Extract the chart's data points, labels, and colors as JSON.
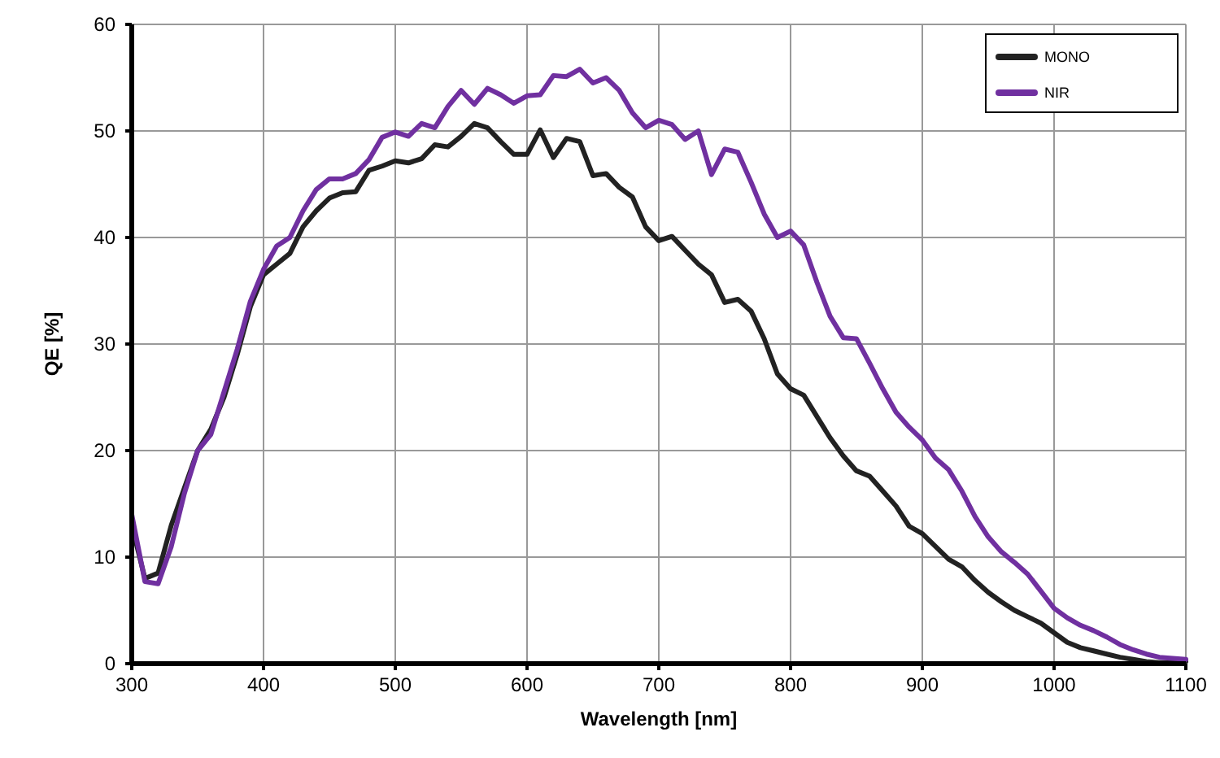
{
  "chart_data": {
    "type": "line",
    "xlabel": "Wavelength [nm]",
    "ylabel": "QE [%]",
    "x": [
      300,
      310,
      320,
      330,
      340,
      350,
      360,
      370,
      380,
      390,
      400,
      410,
      420,
      430,
      440,
      450,
      460,
      470,
      480,
      490,
      500,
      510,
      520,
      530,
      540,
      550,
      560,
      570,
      580,
      590,
      600,
      610,
      620,
      630,
      640,
      650,
      660,
      670,
      680,
      690,
      700,
      710,
      720,
      730,
      740,
      750,
      760,
      770,
      780,
      790,
      800,
      810,
      820,
      830,
      840,
      850,
      860,
      870,
      880,
      890,
      900,
      910,
      920,
      930,
      940,
      950,
      960,
      970,
      980,
      990,
      1000,
      1010,
      1020,
      1030,
      1040,
      1050,
      1060,
      1070,
      1080,
      1090,
      1100
    ],
    "series": [
      {
        "name": "MONO",
        "color": "#222222",
        "values": [
          13,
          8,
          8.5,
          13,
          16.5,
          20,
          22,
          25,
          29,
          33.5,
          36.5,
          37.5,
          38.5,
          41,
          42.5,
          43.7,
          44.2,
          44.3,
          46.3,
          46.7,
          47.2,
          47,
          47.4,
          48.7,
          48.5,
          49.5,
          50.7,
          50.3,
          49,
          47.8,
          47.8,
          50.1,
          47.5,
          49.3,
          49,
          45.8,
          46,
          44.7,
          43.8,
          41,
          39.7,
          40.1,
          38.8,
          37.5,
          36.5,
          33.9,
          34.2,
          33.1,
          30.5,
          27.2,
          25.8,
          25.2,
          23.2,
          21.2,
          19.5,
          18.1,
          17.6,
          16.2,
          14.8,
          12.9,
          12.2,
          11,
          9.8,
          9.1,
          7.8,
          6.7,
          5.8,
          5,
          4.4,
          3.8,
          2.9,
          2,
          1.5,
          1.2,
          0.9,
          0.6,
          0.4,
          0.2,
          0.1,
          0.1,
          0.2
        ]
      },
      {
        "name": "NIR",
        "color": "#7030a0",
        "values": [
          14,
          7.7,
          7.5,
          11,
          16,
          20,
          21.5,
          25.5,
          29.5,
          34,
          37,
          39.2,
          40,
          42.5,
          44.5,
          45.5,
          45.5,
          46,
          47.3,
          49.4,
          49.9,
          49.5,
          50.7,
          50.3,
          52.3,
          53.8,
          52.5,
          54,
          53.4,
          52.6,
          53.3,
          53.4,
          55.2,
          55.1,
          55.8,
          54.5,
          55,
          53.8,
          51.7,
          50.3,
          51,
          50.6,
          49.2,
          50,
          45.9,
          48.3,
          48,
          45.2,
          42.2,
          40,
          40.6,
          39.3,
          35.8,
          32.6,
          30.6,
          30.5,
          28.2,
          25.8,
          23.6,
          22.2,
          21,
          19.3,
          18.2,
          16.2,
          13.8,
          11.9,
          10.5,
          9.5,
          8.4,
          6.8,
          5.2,
          4.3,
          3.6,
          3.1,
          2.5,
          1.8,
          1.3,
          0.9,
          0.6,
          0.5,
          0.4
        ]
      }
    ],
    "xlim": [
      300,
      1100
    ],
    "xticks": [
      300,
      400,
      500,
      600,
      700,
      800,
      900,
      1000,
      1100
    ],
    "ylim": [
      0,
      60
    ],
    "yticks": [
      0,
      10,
      20,
      30,
      40,
      50,
      60
    ],
    "grid": true,
    "legend": "top right",
    "marker": "none",
    "line_style": "solid"
  }
}
